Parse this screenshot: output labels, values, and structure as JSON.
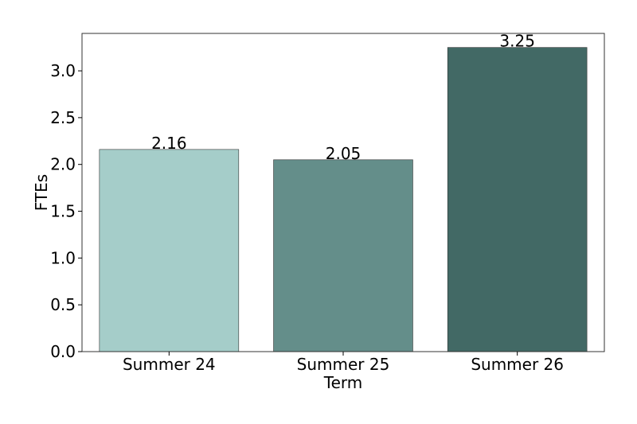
{
  "chart_data": {
    "type": "bar",
    "categories": [
      "Summer 24",
      "Summer 25",
      "Summer 26"
    ],
    "values": [
      2.16,
      2.05,
      3.25
    ],
    "value_labels": [
      "2.16",
      "2.05",
      "3.25"
    ],
    "title": "",
    "xlabel": "Term",
    "ylabel": "FTEs",
    "ylim": [
      0,
      3.4
    ],
    "yticks": [
      0.0,
      0.5,
      1.0,
      1.5,
      2.0,
      2.5,
      3.0
    ],
    "ytick_labels": [
      "0.0",
      "0.5",
      "1.0",
      "1.5",
      "2.0",
      "2.5",
      "3.0"
    ],
    "grid": false,
    "bar_colors": [
      "#a5cdc9",
      "#648e8a",
      "#426965"
    ]
  }
}
